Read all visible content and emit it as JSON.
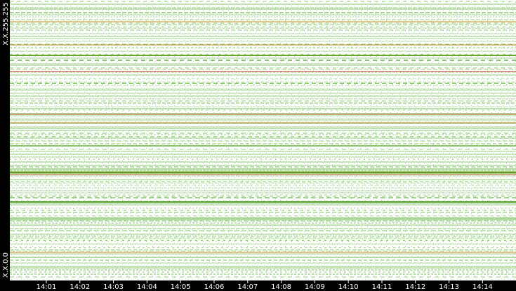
{
  "y_axis": {
    "top_label": "X.X.255.255",
    "bottom_label": "X.X.0.0"
  },
  "x_axis": {
    "tick_labels": [
      "14:01",
      "14:02",
      "14:03",
      "14:04",
      "14:05",
      "14:06",
      "14:07",
      "14:08",
      "14:09",
      "14:10",
      "14:11",
      "14:12",
      "14:13",
      "14:14"
    ]
  }
}
